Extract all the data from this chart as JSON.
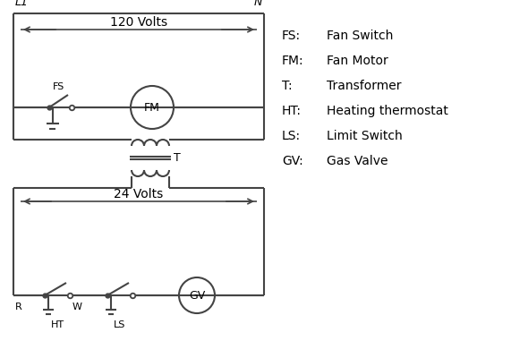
{
  "bg_color": "#ffffff",
  "line_color": "#444444",
  "text_color": "#000000",
  "legend": {
    "FS": "Fan Switch",
    "FM": "Fan Motor",
    "T": "Transformer",
    "HT": "Heating thermostat",
    "LS": "Limit Switch",
    "GV": "Gas Valve"
  },
  "L1_label": "L1",
  "N_label": "N",
  "volts120": "120 Volts",
  "volts24": "24 Volts",
  "T_label": "T",
  "R_label": "R",
  "W_label": "W",
  "HT_label": "HT",
  "LS_label": "LS",
  "FS_label": "FS",
  "FM_label": "FM",
  "GV_label": "GV"
}
